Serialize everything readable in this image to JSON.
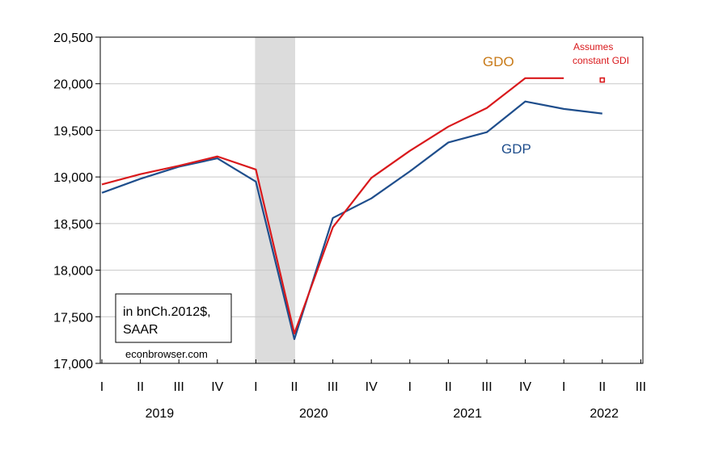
{
  "chart_data": {
    "type": "line",
    "title": "",
    "xlabel": "",
    "ylabel": "",
    "ylim": [
      17000,
      20500
    ],
    "yticks": [
      "17,000",
      "17,500",
      "18,000",
      "18,500",
      "19,000",
      "19,500",
      "20,000",
      "20,500"
    ],
    "ytick_values": [
      17000,
      17500,
      18000,
      18500,
      19000,
      19500,
      20000,
      20500
    ],
    "x_quarters": [
      "I",
      "II",
      "III",
      "IV",
      "I",
      "II",
      "III",
      "IV",
      "I",
      "II",
      "III",
      "IV",
      "I",
      "II",
      "III"
    ],
    "x_years": [
      "2019",
      "2020",
      "2021",
      "2022"
    ],
    "grid": true,
    "recession_shading": {
      "from_quarter_index": 4,
      "to_quarter_index": 5,
      "color": "#dcdcdc"
    },
    "series": [
      {
        "name": "GDP",
        "color": "#1f4e8c",
        "quarters": [
          "2019Q1",
          "2019Q2",
          "2019Q3",
          "2019Q4",
          "2020Q1",
          "2020Q2",
          "2020Q3",
          "2020Q4",
          "2021Q1",
          "2021Q2",
          "2021Q3",
          "2021Q4",
          "2022Q1",
          "2022Q2"
        ],
        "values": [
          18830,
          18980,
          19110,
          19200,
          18950,
          17260,
          18560,
          18770,
          19060,
          19370,
          19480,
          19810,
          19730,
          19680
        ]
      },
      {
        "name": "GDO",
        "color": "#d9191c",
        "quarters": [
          "2019Q1",
          "2019Q2",
          "2019Q3",
          "2019Q4",
          "2020Q1",
          "2020Q2",
          "2020Q3",
          "2020Q4",
          "2021Q1",
          "2021Q2",
          "2021Q3",
          "2021Q4",
          "2022Q1"
        ],
        "values": [
          18920,
          19030,
          19120,
          19220,
          19080,
          17320,
          18460,
          18990,
          19280,
          19540,
          19740,
          20060,
          20060
        ]
      }
    ],
    "marker": {
      "quarter": "2022Q2",
      "value": 20040,
      "color": "#d9191c"
    },
    "annotations": {
      "gdo_label": "GDO",
      "gdo_label_color": "#c87a18",
      "gdp_label": "GDP",
      "gdp_label_color": "#1f4e8c",
      "assumes_line1": "Assumes",
      "assumes_line2": "constant GDI",
      "assumes_color": "#d9191c",
      "units_line1": "in bnCh.2012$,",
      "units_line2": "SAAR",
      "source": "econbrowser.com"
    }
  }
}
